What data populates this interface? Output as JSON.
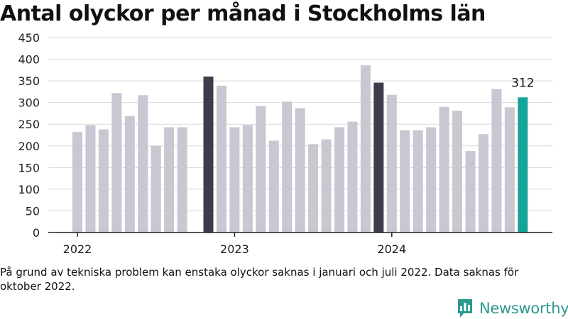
{
  "title": "Antal olyckor per månad i Stockholms län",
  "footnote": "På grund av tekniska problem kan enstaka olyckor saknas i januari och juli 2022. Data saknas för oktober 2022.",
  "brand": {
    "name": "Newsworthy",
    "color": "#2e9a8f",
    "logo_icon": "bar-chart-badge-icon"
  },
  "chart_data": {
    "type": "bar",
    "title": "Antal olyckor per månad i Stockholms län",
    "xlabel": "",
    "ylabel": "",
    "ylim": [
      0,
      450
    ],
    "yticks": [
      0,
      50,
      100,
      150,
      200,
      250,
      300,
      350,
      400,
      450
    ],
    "grid": true,
    "x_tick_labels": [
      {
        "label": "2022",
        "category": "2022-01"
      },
      {
        "label": "2023",
        "category": "2023-01"
      },
      {
        "label": "2024",
        "category": "2024-01"
      }
    ],
    "categories": [
      "2022-01",
      "2022-02",
      "2022-03",
      "2022-04",
      "2022-05",
      "2022-06",
      "2022-07",
      "2022-08",
      "2022-09",
      "2022-10",
      "2022-11",
      "2022-12",
      "2023-01",
      "2023-02",
      "2023-03",
      "2023-04",
      "2023-05",
      "2023-06",
      "2023-07",
      "2023-08",
      "2023-09",
      "2023-10",
      "2023-11",
      "2023-12",
      "2024-01",
      "2024-02",
      "2024-03",
      "2024-04",
      "2024-05",
      "2024-06",
      "2024-07",
      "2024-08",
      "2024-09",
      "2024-10",
      "2024-11"
    ],
    "values": [
      232,
      248,
      238,
      322,
      269,
      317,
      200,
      243,
      243,
      null,
      360,
      339,
      243,
      248,
      292,
      212,
      302,
      287,
      204,
      215,
      243,
      256,
      386,
      346,
      318,
      236,
      236,
      243,
      290,
      281,
      188,
      227,
      331,
      289,
      312
    ],
    "colors": {
      "default": "#c8c7d2",
      "highlight": "#3d3c4c",
      "latest": "#14a49a"
    },
    "highlighted_categories": [
      "2022-11",
      "2023-12"
    ],
    "latest_category": "2024-11",
    "annotations": [
      {
        "category": "2024-11",
        "text": "312"
      }
    ]
  }
}
